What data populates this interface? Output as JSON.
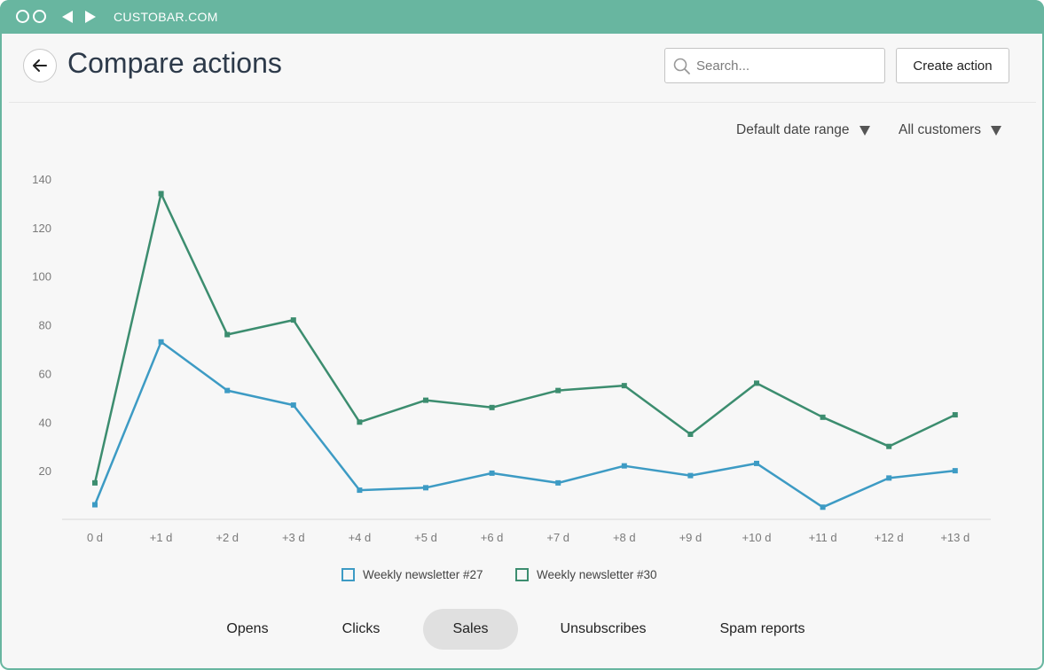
{
  "browser": {
    "url": "CUSTOBAR.COM"
  },
  "header": {
    "title": "Compare actions",
    "search_placeholder": "Search...",
    "create_label": "Create action"
  },
  "filters": {
    "date_range": "Default date range",
    "customers": "All customers"
  },
  "colors": {
    "accent": "#68b6a0",
    "series_27": "#3d9bc4",
    "series_30": "#3c8d6f"
  },
  "chart_data": {
    "type": "line",
    "categories": [
      "0 d",
      "+1 d",
      "+2 d",
      "+3 d",
      "+4 d",
      "+5 d",
      "+6 d",
      "+7 d",
      "+8 d",
      "+9 d",
      "+10 d",
      "+11 d",
      "+12 d",
      "+13 d"
    ],
    "y_ticks": [
      20,
      40,
      60,
      80,
      100,
      120,
      140
    ],
    "ylim": [
      0,
      140
    ],
    "grid": false,
    "legend_position": "bottom-center",
    "series": [
      {
        "name": "Weekly newsletter #27",
        "color": "#3d9bc4",
        "values": [
          6,
          73,
          53,
          47,
          12,
          13,
          19,
          15,
          22,
          18,
          23,
          5,
          17,
          20
        ]
      },
      {
        "name": "Weekly newsletter #30",
        "color": "#3c8d6f",
        "values": [
          15,
          134,
          76,
          82,
          40,
          49,
          46,
          53,
          55,
          35,
          56,
          42,
          30,
          43
        ]
      }
    ]
  },
  "tabs": [
    {
      "label": "Opens",
      "active": false
    },
    {
      "label": "Clicks",
      "active": false
    },
    {
      "label": "Sales",
      "active": true
    },
    {
      "label": "Unsubscribes",
      "active": false
    },
    {
      "label": "Spam reports",
      "active": false
    }
  ]
}
